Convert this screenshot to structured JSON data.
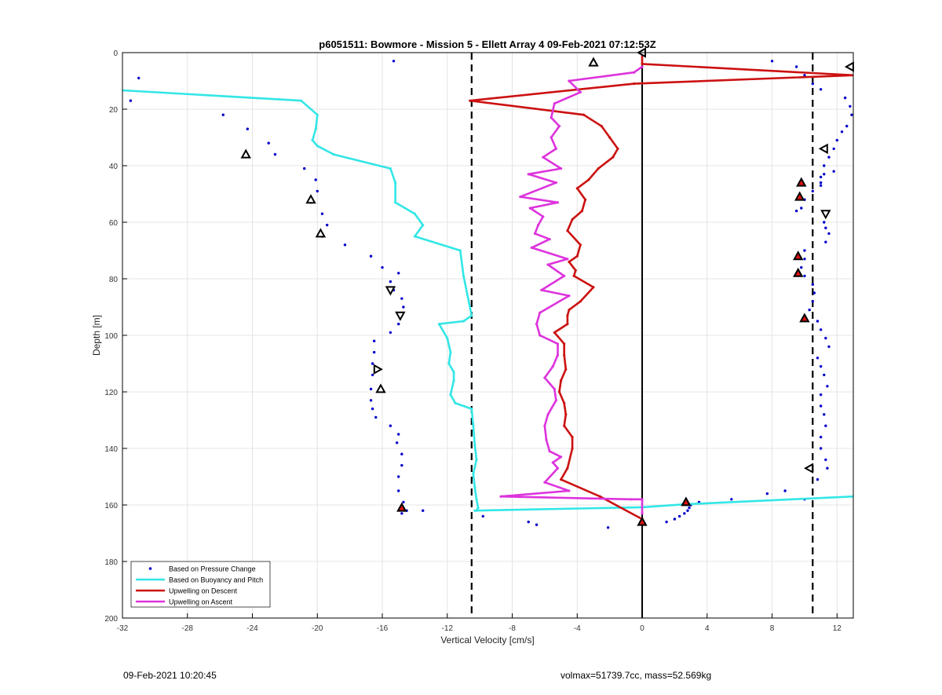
{
  "footer": {
    "timestamp": "09-Feb-2021 10:20:45",
    "vol_mass": "volmax=51739.7cc, mass=52.569kg"
  },
  "chart_data": {
    "type": "line",
    "title": "p6051511: Bowmore - Mission 5 - Ellett Array 4 09-Feb-2021 07:12:53Z",
    "xlabel": "Vertical Velocity [cm/s]",
    "ylabel": "Depth [m]",
    "xlim": [
      -32,
      13
    ],
    "ylim": [
      0,
      200
    ],
    "y_reversed": true,
    "grid": true,
    "xticks": [
      -32,
      -28,
      -24,
      -20,
      -16,
      -12,
      -8,
      -4,
      0,
      4,
      8,
      12
    ],
    "yticks": [
      0,
      20,
      40,
      60,
      80,
      100,
      120,
      140,
      160,
      180,
      200
    ],
    "legend_position": "bottom-left",
    "reference_lines": [
      {
        "x": -10.5,
        "style": "dashed",
        "color": "#000000"
      },
      {
        "x": 0,
        "style": "solid",
        "color": "#000000"
      },
      {
        "x": 10.5,
        "style": "dashed",
        "color": "#000000"
      }
    ],
    "series": [
      {
        "name": "Based on Pressure Change",
        "kind": "scatter",
        "color": "#0000cc",
        "x": [
          -15.3,
          -31.0,
          -31.5,
          -25.8,
          -24.3,
          -23.0,
          -22.6,
          -20.8,
          -20.1,
          -20.0,
          -20.4,
          -19.7,
          -19.4,
          -19.7,
          -18.3,
          -16.7,
          -16.0,
          -15.5,
          -15.3,
          -15.0,
          -14.8,
          -14.7,
          -14.8,
          -15.0,
          -15.5,
          -16.5,
          -16.5,
          -16.6,
          -16.6,
          -16.7,
          -16.7,
          -16.6,
          -16.4,
          -15.5,
          -15.0,
          -15.1,
          -14.8,
          -14.8,
          -15.0,
          -15.0,
          -14.7,
          -14.5,
          -14.8,
          -13.5,
          -9.8,
          -7.0,
          -6.5,
          -2.1,
          1.5,
          2.0,
          2.3,
          2.6,
          2.8,
          2.9,
          3.0,
          3.5,
          5.5,
          7.7,
          8.0,
          9.5,
          10.0,
          10.5,
          11.0,
          12.5,
          12.8,
          12.9,
          12.6,
          12.3,
          12.0,
          11.8,
          11.5,
          11.2,
          11.0,
          11.0,
          11.2,
          11.8,
          11.0,
          10.5,
          10.0,
          9.8,
          9.5,
          11.2,
          11.3,
          11.5,
          11.3,
          10.0,
          10.0,
          9.8,
          10.0,
          10.5,
          10.6,
          10.5,
          10.3,
          10.8,
          11.0,
          11.3,
          11.5,
          10.8,
          11.0,
          11.2,
          11.4,
          11.0,
          11.0,
          11.2,
          11.3,
          11.0,
          11.0,
          11.3,
          11.4,
          10.8,
          8.8,
          10.0
        ],
        "y": [
          3,
          9,
          17,
          22,
          27,
          32,
          36,
          41,
          45,
          49,
          53,
          57,
          61,
          65,
          68,
          72,
          76,
          81,
          84,
          78,
          87,
          90,
          93,
          96,
          99,
          102,
          106,
          110,
          114,
          119,
          123,
          126,
          129,
          132,
          135,
          138,
          142,
          146,
          150,
          155,
          159,
          162,
          163,
          162,
          164,
          166,
          167,
          168,
          166,
          165,
          164,
          163,
          162,
          161,
          160,
          159,
          158,
          156,
          3,
          5,
          8,
          11,
          13,
          16,
          19,
          22,
          26,
          28,
          31,
          34,
          37,
          40,
          44,
          46,
          43,
          42,
          47,
          49,
          52,
          55,
          56,
          60,
          62,
          64,
          67,
          70,
          73,
          76,
          79,
          82,
          85,
          88,
          91,
          95,
          98,
          101,
          104,
          108,
          111,
          114,
          118,
          121,
          125,
          128,
          132,
          136,
          140,
          144,
          147,
          151,
          155,
          158
        ]
      },
      {
        "name": "Based on Buoyancy and Pitch",
        "kind": "line",
        "color": "#33e6e6",
        "x": [
          -33.0,
          -21.0,
          -20.0,
          -20.1,
          -20.3,
          -20.0,
          -19.0,
          -15.5,
          -15.2,
          -15.2,
          -14.0,
          -13.5,
          -14.0,
          -11.2,
          -11.0,
          -10.5,
          -11.0,
          -12.5,
          -12.0,
          -11.8,
          -11.9,
          -11.6,
          -11.6,
          -11.8,
          -11.5,
          -10.5,
          -10.4,
          -10.3,
          -10.2,
          -10.4,
          -10.3,
          -10.2,
          -10.1,
          -10.2,
          -10.3,
          0,
          2.5,
          13.0
        ],
        "y": [
          13,
          17,
          22,
          27,
          31,
          33,
          36,
          41,
          46,
          53,
          57,
          61,
          65,
          70,
          79,
          93,
          95,
          96,
          101,
          106,
          110,
          113,
          116,
          121,
          124,
          126,
          132,
          139,
          144,
          149,
          154,
          158,
          161,
          162,
          162,
          160.8,
          159.8,
          157
        ]
      },
      {
        "name": "Upwelling on Descent",
        "kind": "line",
        "color": "#cc1111",
        "x": [
          0,
          0,
          13.0,
          -0.5,
          -10.6,
          -3.6,
          -2.5,
          -2.0,
          -1.5,
          -1.8,
          -2.7,
          -3.3,
          -4.0,
          -3.5,
          -3.7,
          -4.3,
          -4.6,
          -3.8,
          -4.0,
          -4.5,
          -4.1,
          -4.2,
          -3.0,
          -3.8,
          -4.5,
          -4.6,
          -4.6,
          -5.4,
          -4.8,
          -4.8,
          -4.7,
          -5.0,
          -5.1,
          -4.8,
          -4.7,
          -4.8,
          -4.3,
          -4.3,
          -4.6,
          -5.0,
          -2.6,
          0
        ],
        "y": [
          0,
          4,
          8,
          11,
          17,
          22,
          26,
          30,
          34,
          37,
          41,
          45,
          48,
          52,
          56,
          59,
          63,
          68,
          72,
          74,
          77,
          79,
          83,
          88,
          91,
          93,
          96,
          99,
          103,
          107,
          112,
          116,
          120,
          124,
          128,
          132,
          136,
          140,
          147,
          151,
          157,
          165
        ]
      },
      {
        "name": "Upwelling on Ascent",
        "kind": "line",
        "color": "#dd33dd",
        "x": [
          0,
          -0.5,
          -4.5,
          -3.8,
          -5.4,
          -5.6,
          -5.1,
          -5.6,
          -5.3,
          -6.1,
          -5.0,
          -7.0,
          -5.3,
          -7.5,
          -5.2,
          -6.9,
          -6.1,
          -6.4,
          -6.6,
          -5.7,
          -6.8,
          -4.6,
          -5.8,
          -4.8,
          -6.2,
          -4.5,
          -6.3,
          -6.5,
          -6.3,
          -5.2,
          -5.2,
          -5.5,
          -6.0,
          -5.4,
          -5.3,
          -5.8,
          -6.0,
          -5.9,
          -5.7,
          -5.0,
          -5.5,
          -5.2,
          -6.0,
          -4.5,
          -8.7,
          -0.7,
          0,
          0
        ],
        "y": [
          5,
          7,
          10,
          14,
          18,
          23,
          26,
          30,
          34,
          37,
          41,
          43,
          46,
          51,
          53,
          55,
          58,
          61,
          64,
          66,
          69,
          73,
          75,
          79,
          84,
          86,
          92,
          96,
          100,
          103,
          107,
          111,
          115,
          119,
          123,
          128,
          132,
          137,
          141,
          143,
          145,
          147,
          152,
          155,
          157,
          158,
          158,
          163
        ]
      }
    ],
    "markers": [
      {
        "type": "triangle-up",
        "x": -3.0,
        "y": 3.5
      },
      {
        "type": "triangle-left",
        "x": 0,
        "y": 0
      },
      {
        "type": "triangle-left",
        "x": 12.8,
        "y": 5
      },
      {
        "type": "triangle-left",
        "x": 11.2,
        "y": 34
      },
      {
        "type": "triangle-up",
        "x": -24.4,
        "y": 36
      },
      {
        "type": "triangle-up",
        "x": -20.4,
        "y": 52
      },
      {
        "type": "triangle-up",
        "x": -19.8,
        "y": 64
      },
      {
        "type": "triangle-down",
        "x": -15.5,
        "y": 84
      },
      {
        "type": "triangle-down",
        "x": -14.9,
        "y": 93
      },
      {
        "type": "triangle-right",
        "x": -16.3,
        "y": 112
      },
      {
        "type": "triangle-up",
        "x": -16.1,
        "y": 119
      },
      {
        "type": "triangle-down",
        "x": 11.3,
        "y": 57
      },
      {
        "type": "triangle-left",
        "x": 10.3,
        "y": 147
      },
      {
        "type": "triangle-up-filled",
        "x": 9.8,
        "y": 46
      },
      {
        "type": "triangle-up-filled",
        "x": 9.7,
        "y": 51
      },
      {
        "type": "triangle-up-filled",
        "x": 9.6,
        "y": 72
      },
      {
        "type": "triangle-up-filled",
        "x": 9.6,
        "y": 78
      },
      {
        "type": "triangle-up-filled",
        "x": 10.0,
        "y": 94
      },
      {
        "type": "triangle-up-filled",
        "x": -14.8,
        "y": 161
      },
      {
        "type": "triangle-up-filled",
        "x": 2.7,
        "y": 159
      },
      {
        "type": "triangle-up-filled",
        "x": 0,
        "y": 166
      }
    ]
  }
}
